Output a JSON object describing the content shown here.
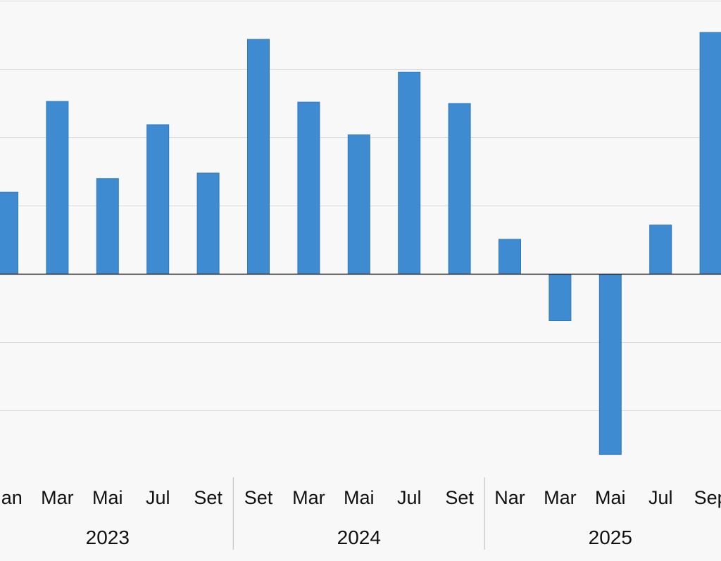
{
  "colors": {
    "bar": "#3f8bd1",
    "background": "#f8f8f8"
  },
  "chart_data": {
    "type": "bar",
    "title": "",
    "xlabel": "",
    "ylabel": "",
    "ylim": [
      -3,
      4
    ],
    "grid": true,
    "legend": "none",
    "groups": [
      {
        "name": "2023",
        "start": 0,
        "end": 4
      },
      {
        "name": "2024",
        "start": 5,
        "end": 9
      },
      {
        "name": "2025",
        "start": 10,
        "end": 14
      }
    ],
    "categories": [
      "Jan",
      "Mar",
      "Mai",
      "Jul",
      "Set",
      "Set",
      "Mar",
      "Mai",
      "Jul",
      "Set",
      "Nar",
      "Mar",
      "Mai",
      "Jul",
      "Sep"
    ],
    "series": [
      {
        "values": [
          1.2,
          2.53,
          1.4,
          2.19,
          1.48,
          3.44,
          2.52,
          2.04,
          2.96,
          2.5,
          0.51,
          -0.68,
          -2.64,
          0.72,
          3.54
        ]
      }
    ]
  }
}
